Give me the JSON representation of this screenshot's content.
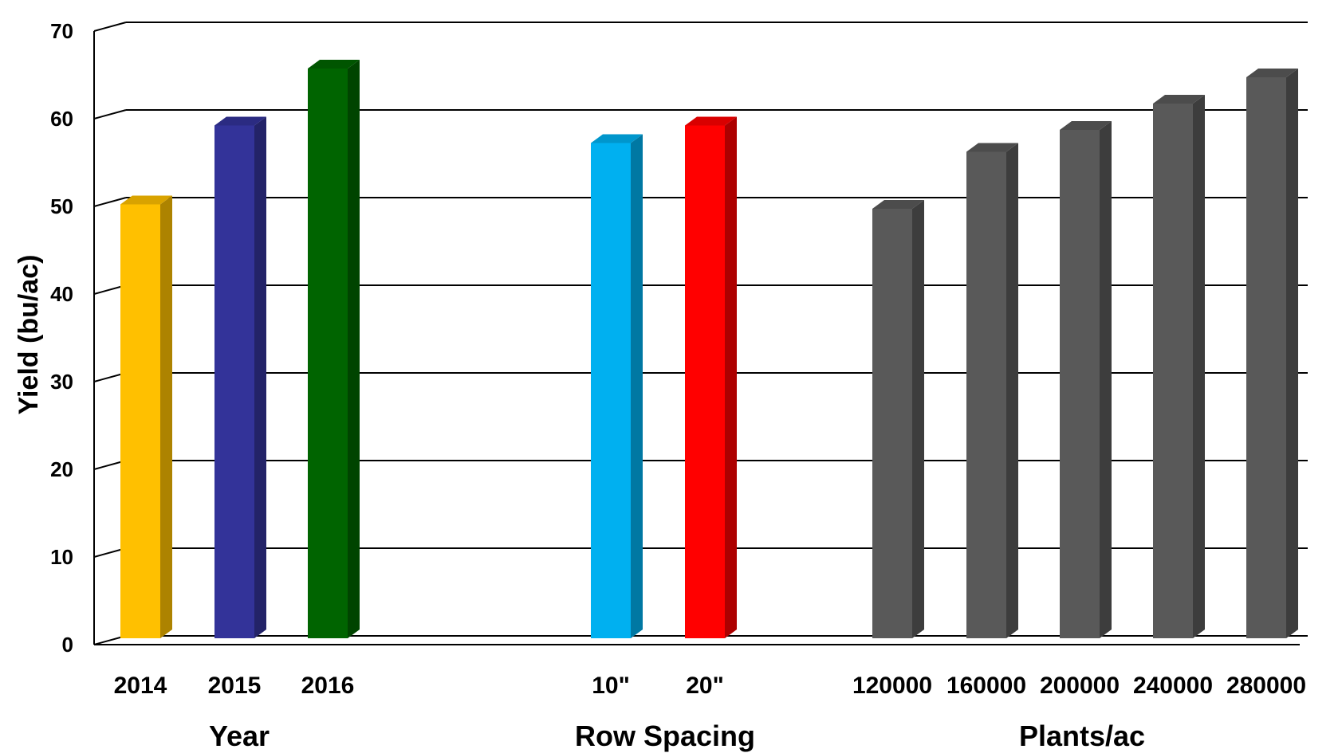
{
  "chart_data": {
    "type": "bar",
    "style": "3d",
    "ylabel": "Yield (bu/ac)",
    "ylim": [
      0,
      70
    ],
    "yticks": [
      0,
      10,
      20,
      30,
      40,
      50,
      60,
      70
    ],
    "grid": true,
    "groups": [
      {
        "label": "Year",
        "bars": [
          {
            "category": "2014",
            "value": 49.5,
            "color": "#FFC000"
          },
          {
            "category": "2015",
            "value": 58.5,
            "color": "#333399"
          },
          {
            "category": "2016",
            "value": 65,
            "color": "#006400"
          }
        ]
      },
      {
        "label": "Row Spacing",
        "bars": [
          {
            "category": "10\"",
            "value": 56.5,
            "color": "#00B0F0"
          },
          {
            "category": "20\"",
            "value": 58.5,
            "color": "#FF0000"
          }
        ]
      },
      {
        "label": "Plants/ac",
        "bars": [
          {
            "category": "120000",
            "value": 49,
            "color": "#595959"
          },
          {
            "category": "160000",
            "value": 55.5,
            "color": "#595959"
          },
          {
            "category": "200000",
            "value": 58,
            "color": "#595959"
          },
          {
            "category": "240000",
            "value": 61,
            "color": "#595959"
          },
          {
            "category": "280000",
            "value": 64,
            "color": "#595959"
          }
        ]
      }
    ]
  }
}
